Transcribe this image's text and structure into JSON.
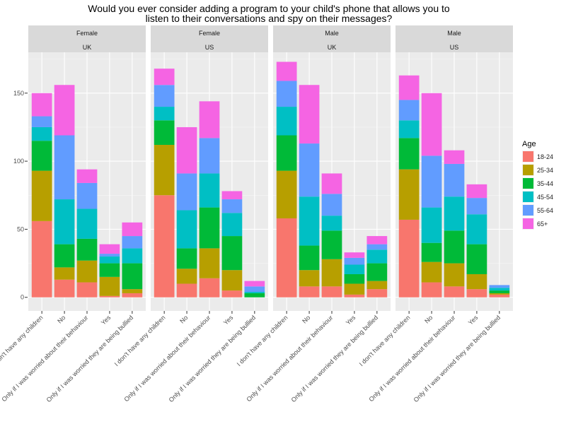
{
  "chart_data": {
    "type": "bar",
    "stacked": true,
    "title_line1": "Would you ever consider adding a program to your child's phone that allows you to",
    "title_line2": "listen to their conversations and spy on their messages?",
    "xlabel": "",
    "ylabel": "",
    "ylim": [
      -10,
      180
    ],
    "yticks": [
      0,
      50,
      100,
      150
    ],
    "categories": [
      "I don't have any children",
      "No",
      "Only if I was worried about their behaviour",
      "Yes",
      "Only if I was worried they are being bullied"
    ],
    "legend": {
      "title": "Age",
      "position": "right",
      "entries": [
        {
          "name": "18-24",
          "color": "#F8766D"
        },
        {
          "name": "25-34",
          "color": "#B79F00"
        },
        {
          "name": "35-44",
          "color": "#00BA38"
        },
        {
          "name": "45-54",
          "color": "#00BFC4"
        },
        {
          "name": "55-64",
          "color": "#619CFF"
        },
        {
          "name": "65+",
          "color": "#F564E3"
        }
      ]
    },
    "panels": [
      {
        "strip": [
          "Female",
          "UK"
        ],
        "values": [
          [
            56,
            37,
            22,
            10,
            8,
            17
          ],
          [
            13,
            9,
            17,
            33,
            47,
            37
          ],
          [
            11,
            16,
            16,
            22,
            19,
            10
          ],
          [
            1,
            14,
            10,
            5,
            2,
            7
          ],
          [
            3,
            3,
            19,
            11,
            9,
            10
          ]
        ]
      },
      {
        "strip": [
          "Female",
          "US"
        ],
        "values": [
          [
            75,
            37,
            18,
            10,
            16,
            12
          ],
          [
            10,
            11,
            15,
            28,
            27,
            34
          ],
          [
            14,
            22,
            30,
            25,
            26,
            27
          ],
          [
            5,
            15,
            25,
            17,
            10,
            6
          ],
          [
            0,
            0,
            3,
            1,
            4,
            4
          ]
        ]
      },
      {
        "strip": [
          "Male",
          "UK"
        ],
        "values": [
          [
            58,
            35,
            26,
            21,
            19,
            14
          ],
          [
            8,
            12,
            18,
            36,
            39,
            43
          ],
          [
            8,
            20,
            21,
            11,
            16,
            15
          ],
          [
            2,
            8,
            7,
            7,
            5,
            4
          ],
          [
            6,
            6,
            13,
            10,
            4,
            6
          ]
        ]
      },
      {
        "strip": [
          "Male",
          "US"
        ],
        "values": [
          [
            57,
            37,
            23,
            13,
            15,
            18
          ],
          [
            11,
            15,
            14,
            26,
            38,
            46
          ],
          [
            8,
            17,
            24,
            25,
            24,
            10
          ],
          [
            6,
            11,
            22,
            22,
            12,
            10
          ],
          [
            2,
            1,
            2,
            2,
            2,
            0
          ]
        ]
      }
    ]
  }
}
